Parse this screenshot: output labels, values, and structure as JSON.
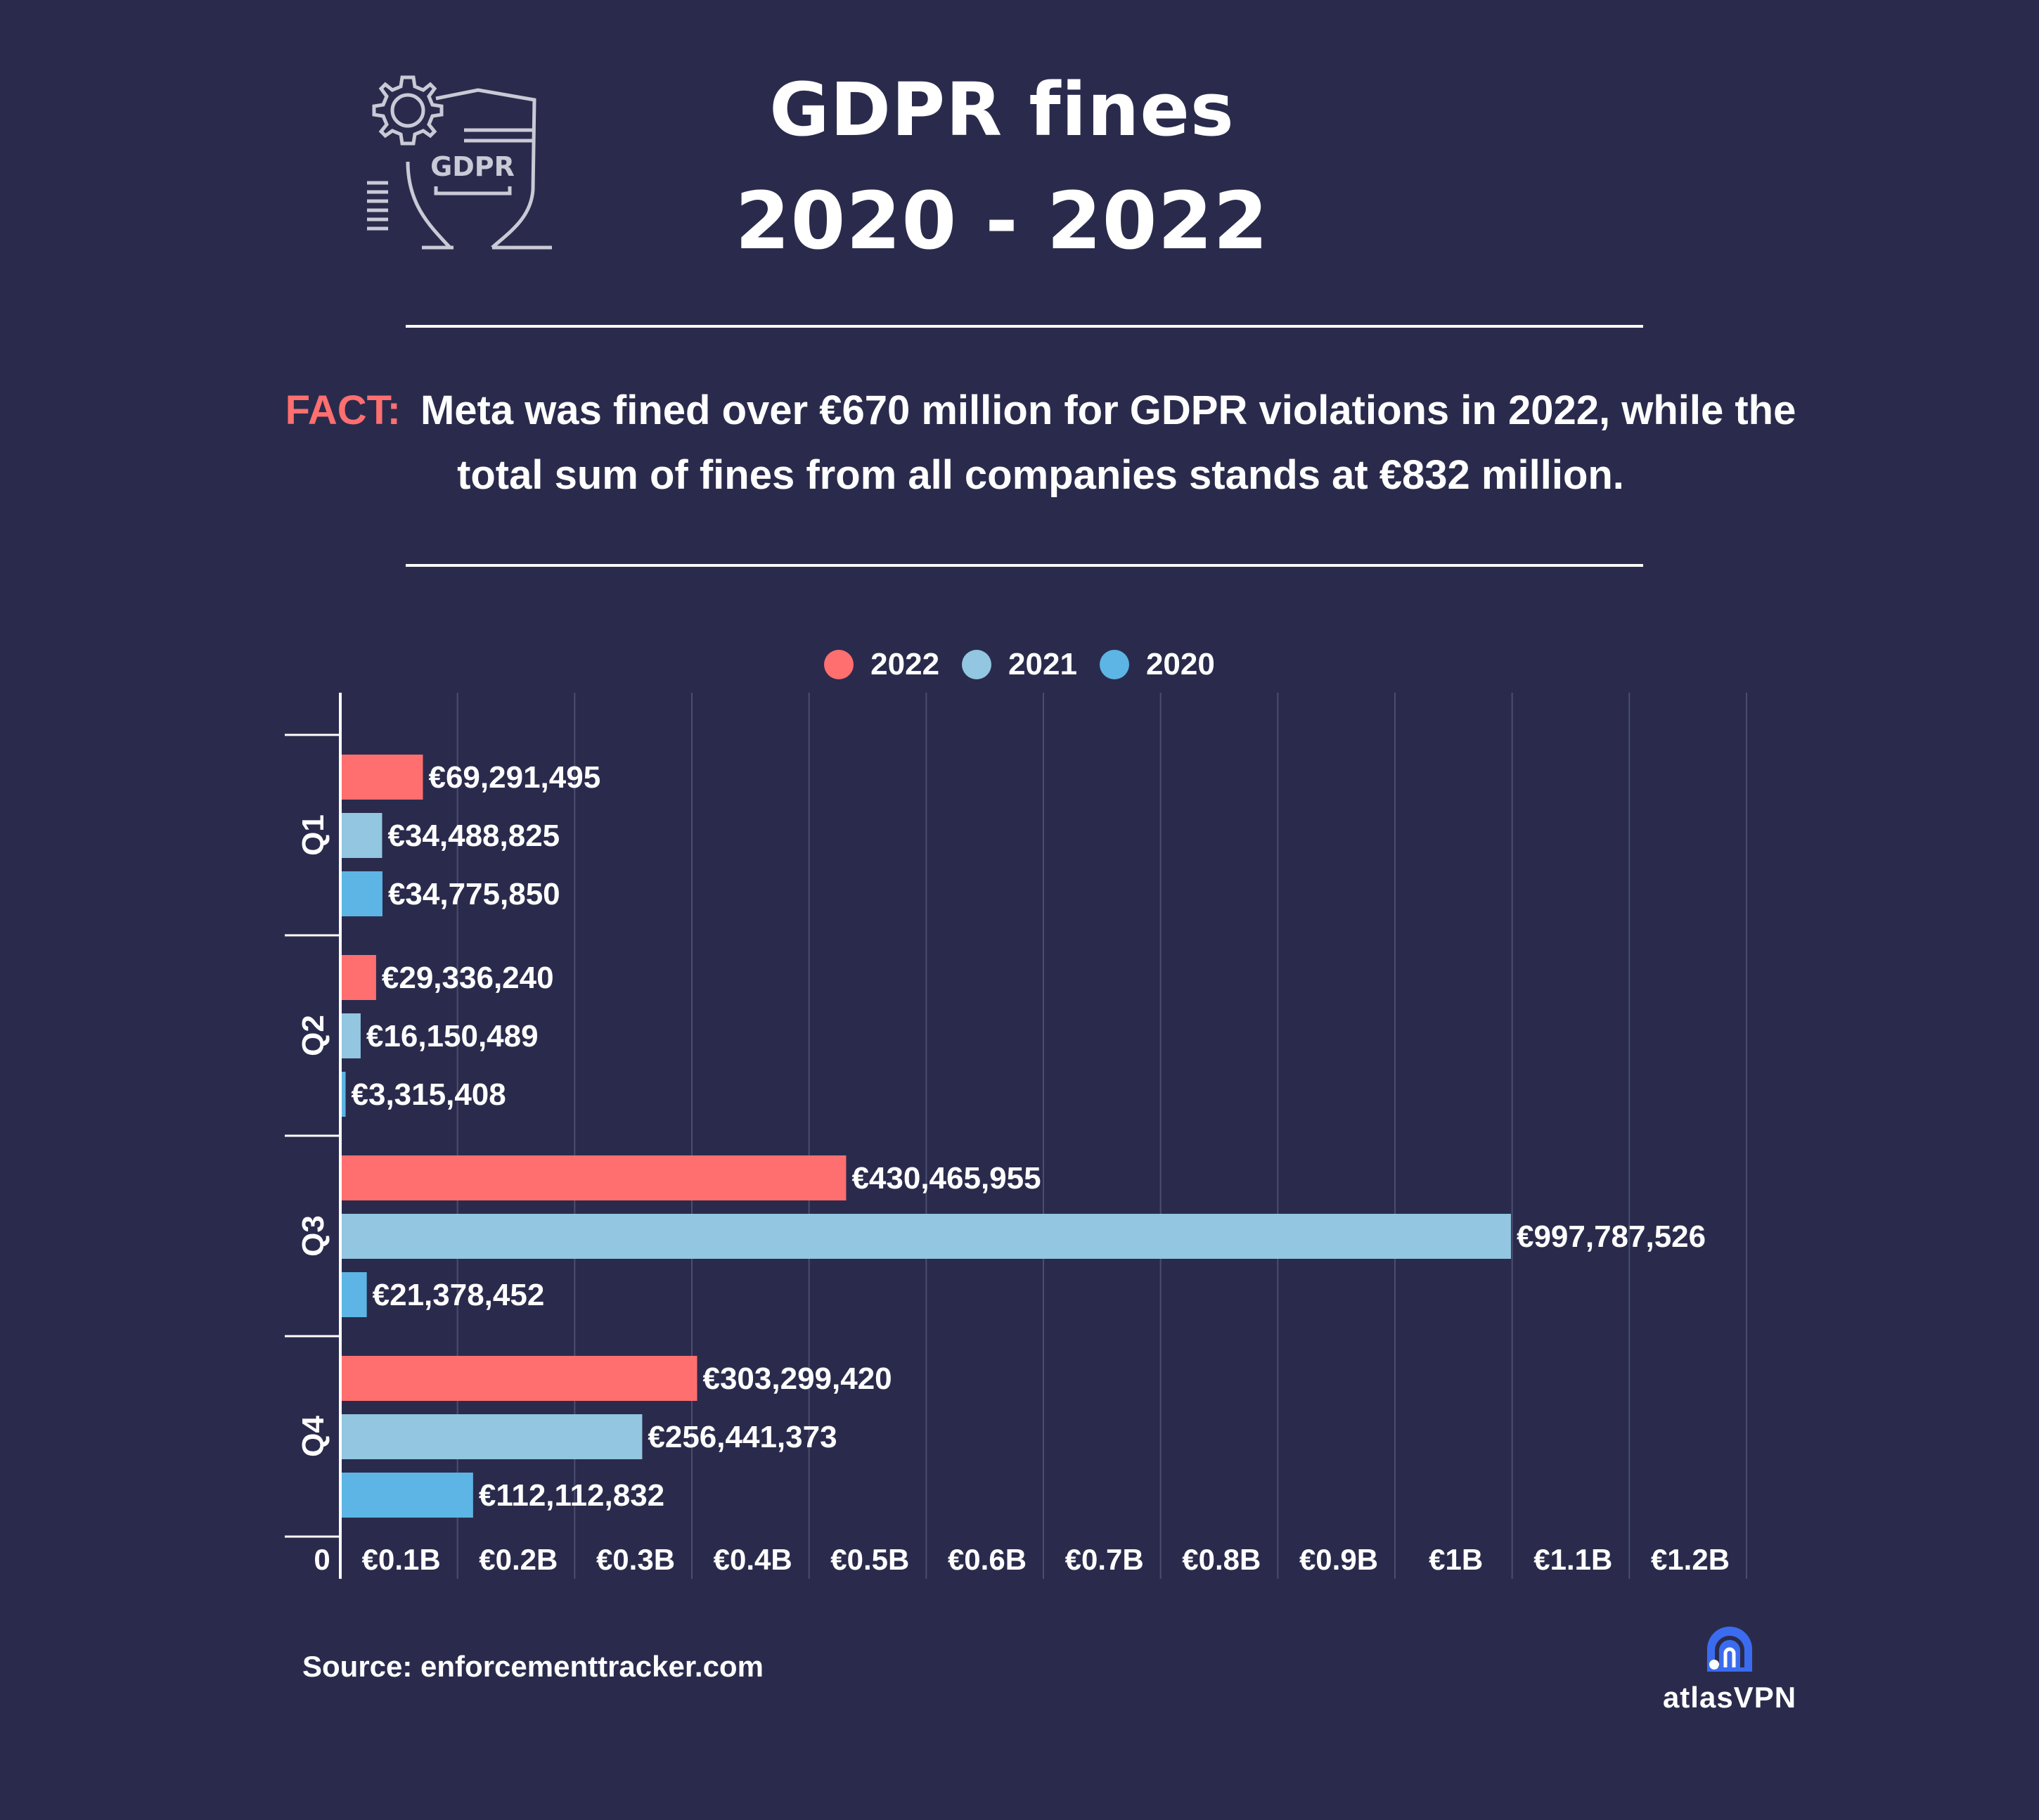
{
  "header": {
    "title_line1": "GDPR fines",
    "title_line2": "2020 - 2022",
    "logo_icon": "gdpr-shield-gear-icon",
    "logo_text": "GDPR"
  },
  "fact": {
    "label": "FACT:",
    "text": "Meta was fined over €670 million for GDPR violations in 2022, while the total sum of fines from all companies stands at €832 million."
  },
  "source": "Source: enforcementtracker.com",
  "brand": {
    "name": "atlasVPN",
    "icon": "atlasvpn-logo-icon"
  },
  "colors": {
    "background": "#2a2b4c",
    "series_2022": "#ff6f6f",
    "series_2021": "#93c6e0",
    "series_2020": "#5cb5e4",
    "fact_label": "#ff6f6f"
  },
  "chart_data": {
    "type": "bar",
    "orientation": "horizontal",
    "title": "GDPR fines 2020 - 2022",
    "xlabel": "",
    "ylabel": "",
    "categories": [
      "Q1",
      "Q2",
      "Q3",
      "Q4"
    ],
    "series": [
      {
        "name": "2022",
        "color": "#ff6f6f",
        "values": [
          69291495,
          29336240,
          430465955,
          303299420
        ],
        "labels": [
          "€69,291,495",
          "€29,336,240",
          "€430,465,955",
          "€303,299,420"
        ]
      },
      {
        "name": "2021",
        "color": "#93c6e0",
        "values": [
          34488825,
          16150489,
          997787526,
          256441373
        ],
        "labels": [
          "€34,488,825",
          "€16,150,489",
          "€997,787,526",
          "€256,441,373"
        ]
      },
      {
        "name": "2020",
        "color": "#5cb5e4",
        "values": [
          34775850,
          3315408,
          21378452,
          112112832
        ],
        "labels": [
          "€34,775,850",
          "€3,315,408",
          "€21,378,452",
          "€112,112,832"
        ]
      }
    ],
    "xlim": [
      0,
      1200000000
    ],
    "x_ticks": [
      0,
      100000000,
      200000000,
      300000000,
      400000000,
      500000000,
      600000000,
      700000000,
      800000000,
      900000000,
      1000000000,
      1100000000,
      1200000000
    ],
    "x_tick_labels": [
      "0",
      "€0.1B",
      "€0.2B",
      "€0.3B",
      "€0.4B",
      "€0.5B",
      "€0.6B",
      "€0.7B",
      "€0.8B",
      "€0.9B",
      "€1B",
      "€1.1B",
      "€1.2B"
    ],
    "grid": true,
    "legend_position": "top-center"
  }
}
